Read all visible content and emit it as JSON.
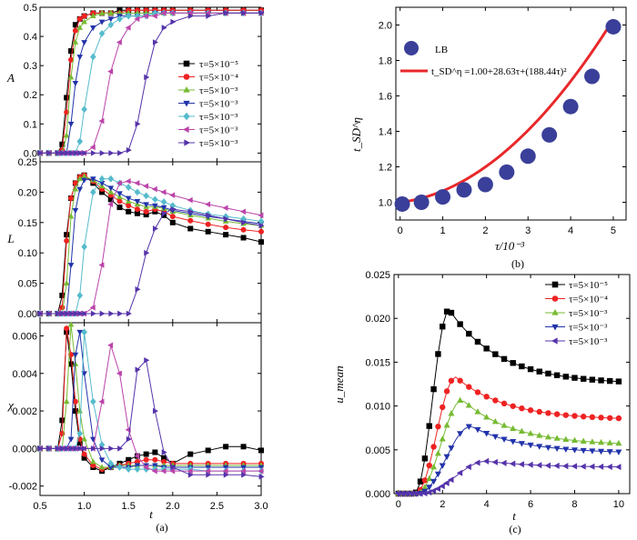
{
  "palette": {
    "black": "#000000",
    "red": "#ee2222",
    "green": "#77bb33",
    "blue": "#2233aa",
    "cyan": "#55bbcc",
    "magenta": "#bb44aa",
    "purple": "#5533aa",
    "fitRed": "#e8282b",
    "lbBlue": "#3a3f99"
  },
  "panel_a": {
    "caption": "(a)",
    "xlabel": "t",
    "legend": [
      "τ=5×10⁻⁵",
      "τ=5×10⁻⁴",
      "τ=5×10⁻³",
      "τ=5×10⁻³",
      "τ=5×10⁻³",
      "τ=5×10⁻³",
      "τ=5×10⁻³"
    ],
    "x": [
      0.5,
      0.6,
      0.7,
      0.75,
      0.8,
      0.85,
      0.9,
      0.95,
      1.0,
      1.1,
      1.2,
      1.3,
      1.4,
      1.5,
      1.6,
      1.7,
      1.8,
      1.9,
      2.0,
      2.2,
      2.4,
      2.6,
      2.8,
      3.0
    ],
    "offsets": [
      0.7,
      0.72,
      0.77,
      0.85,
      0.95,
      1.15,
      1.55
    ],
    "xticks": [
      "0.5",
      "1.0",
      "1.5",
      "2.0",
      "2.5",
      "3.0"
    ]
  },
  "chart_data": [
    {
      "type": "line",
      "ylabel": "A",
      "xlim": [
        0.5,
        3.0
      ],
      "ylim": [
        -0.03,
        0.5
      ],
      "yticks": [
        "0.0",
        "0.1",
        "0.2",
        "0.3",
        "0.4",
        "0.5"
      ],
      "series": [
        {
          "name": "τ=5×10⁻⁵",
          "values": [
            0,
            0,
            0.0,
            0.03,
            0.19,
            0.35,
            0.44,
            0.46,
            0.47,
            0.48,
            0.48,
            0.48,
            0.49,
            0.49,
            0.49,
            0.49,
            0.49,
            0.49,
            0.49,
            0.49,
            0.49,
            0.49,
            0.49,
            0.49
          ]
        },
        {
          "name": "τ=5×10⁻⁴",
          "values": [
            0,
            0,
            0.0,
            0.01,
            0.14,
            0.32,
            0.42,
            0.46,
            0.47,
            0.48,
            0.48,
            0.48,
            0.48,
            0.49,
            0.49,
            0.49,
            0.49,
            0.49,
            0.49,
            0.49,
            0.49,
            0.49,
            0.49,
            0.49
          ]
        },
        {
          "name": "τ=5×10⁻³",
          "values": [
            0,
            0,
            0.0,
            0.0,
            0.06,
            0.26,
            0.38,
            0.43,
            0.45,
            0.47,
            0.48,
            0.48,
            0.48,
            0.48,
            0.48,
            0.48,
            0.48,
            0.48,
            0.48,
            0.48,
            0.48,
            0.48,
            0.48,
            0.48
          ]
        },
        {
          "name": "τ=5×10⁻³",
          "values": [
            0,
            0,
            0.0,
            0.0,
            0.0,
            0.1,
            0.24,
            0.33,
            0.38,
            0.43,
            0.45,
            0.46,
            0.47,
            0.47,
            0.47,
            0.47,
            0.48,
            0.48,
            0.48,
            0.48,
            0.48,
            0.48,
            0.48,
            0.48
          ]
        },
        {
          "name": "τ=5×10⁻³",
          "values": [
            0,
            0,
            0.0,
            0.0,
            0.0,
            0.0,
            0.0,
            0.04,
            0.15,
            0.33,
            0.41,
            0.44,
            0.46,
            0.47,
            0.47,
            0.47,
            0.48,
            0.48,
            0.48,
            0.48,
            0.48,
            0.48,
            0.48,
            0.48
          ]
        },
        {
          "name": "τ=5×10⁻³",
          "values": [
            0,
            0,
            0.0,
            0.0,
            0.0,
            0.0,
            0.0,
            0.0,
            0.0,
            0.02,
            0.11,
            0.28,
            0.38,
            0.43,
            0.46,
            0.47,
            0.47,
            0.48,
            0.48,
            0.48,
            0.48,
            0.48,
            0.48,
            0.48
          ]
        },
        {
          "name": "τ=5×10⁻³",
          "values": [
            0,
            0,
            0.0,
            0.0,
            0.0,
            0.0,
            0.0,
            0.0,
            0.0,
            0.0,
            0.0,
            0.0,
            0.0,
            0.01,
            0.1,
            0.26,
            0.38,
            0.43,
            0.45,
            0.47,
            0.47,
            0.48,
            0.48,
            0.48
          ]
        }
      ]
    },
    {
      "type": "line",
      "ylabel": "L",
      "xlim": [
        0.5,
        3.0
      ],
      "ylim": [
        -0.015,
        0.25
      ],
      "yticks": [
        "0.00",
        "0.05",
        "0.10",
        "0.15",
        "0.20",
        "0.25"
      ],
      "series": [
        {
          "name": "τ=5×10⁻⁵",
          "values": [
            0,
            0,
            0.0,
            0.03,
            0.13,
            0.19,
            0.215,
            0.225,
            0.228,
            0.215,
            0.2,
            0.188,
            0.175,
            0.168,
            0.165,
            0.163,
            0.168,
            0.162,
            0.15,
            0.14,
            0.135,
            0.13,
            0.125,
            0.118
          ]
        },
        {
          "name": "τ=5×10⁻⁴",
          "values": [
            0,
            0,
            0.0,
            0.01,
            0.12,
            0.19,
            0.215,
            0.225,
            0.228,
            0.218,
            0.205,
            0.195,
            0.185,
            0.178,
            0.172,
            0.168,
            0.172,
            0.168,
            0.16,
            0.153,
            0.147,
            0.142,
            0.138,
            0.135
          ]
        },
        {
          "name": "τ=5×10⁻³",
          "values": [
            0,
            0,
            0.0,
            0.0,
            0.05,
            0.16,
            0.205,
            0.222,
            0.226,
            0.22,
            0.21,
            0.2,
            0.192,
            0.185,
            0.18,
            0.176,
            0.176,
            0.173,
            0.168,
            0.162,
            0.157,
            0.152,
            0.148,
            0.145
          ]
        },
        {
          "name": "τ=5×10⁻³",
          "values": [
            0,
            0,
            0.0,
            0.0,
            0.0,
            0.08,
            0.17,
            0.205,
            0.22,
            0.222,
            0.215,
            0.207,
            0.198,
            0.19,
            0.185,
            0.18,
            0.178,
            0.175,
            0.17,
            0.165,
            0.16,
            0.156,
            0.152,
            0.148
          ]
        },
        {
          "name": "τ=5×10⁻³",
          "values": [
            0,
            0,
            0.0,
            0.0,
            0.0,
            0.0,
            0.0,
            0.03,
            0.11,
            0.2,
            0.222,
            0.222,
            0.215,
            0.208,
            0.2,
            0.194,
            0.188,
            0.184,
            0.178,
            0.17,
            0.164,
            0.16,
            0.156,
            0.152
          ]
        },
        {
          "name": "τ=5×10⁻³",
          "values": [
            0,
            0,
            0.0,
            0.0,
            0.0,
            0.0,
            0.0,
            0.0,
            0.0,
            0.01,
            0.08,
            0.18,
            0.215,
            0.218,
            0.215,
            0.21,
            0.205,
            0.2,
            0.195,
            0.187,
            0.18,
            0.174,
            0.168,
            0.162
          ]
        },
        {
          "name": "τ=5×10⁻³",
          "values": [
            0,
            0,
            0.0,
            0.0,
            0.0,
            0.0,
            0.0,
            0.0,
            0.0,
            0.0,
            0.0,
            0.0,
            0.0,
            0.0,
            0.04,
            0.1,
            0.14,
            0.165,
            0.172,
            0.168,
            0.162,
            0.156,
            0.15,
            0.145
          ]
        }
      ]
    },
    {
      "type": "line",
      "ylabel": "χ",
      "xlim": [
        0.5,
        3.0
      ],
      "ylim": [
        -0.0025,
        0.0067
      ],
      "yticks": [
        "-0.002",
        "0.000",
        "0.002",
        "0.004",
        "0.006"
      ],
      "series": [
        {
          "name": "τ=5×10⁻⁵",
          "values": [
            0,
            0,
            0,
            0.0015,
            0.0062,
            0.0045,
            0.002,
            0.0003,
            -0.0005,
            -0.001,
            -0.0012,
            -0.001,
            -0.0008,
            -0.0006,
            -0.0004,
            -0.0003,
            -0.0002,
            -0.0005,
            -0.0008,
            -0.0003,
            -0.0001,
            0.0001,
            0.0001,
            -0.0001
          ]
        },
        {
          "name": "τ=5×10⁻⁴",
          "values": [
            0,
            0,
            0,
            0.0008,
            0.0064,
            0.005,
            0.0025,
            0.0005,
            -0.0003,
            -0.0009,
            -0.0011,
            -0.001,
            -0.0009,
            -0.0008,
            -0.0007,
            -0.0006,
            -0.0006,
            -0.0007,
            -0.0008,
            -0.0008,
            -0.0008,
            -0.0008,
            -0.0008,
            -0.0008
          ]
        },
        {
          "name": "τ=5×10⁻³",
          "values": [
            0,
            0,
            0,
            0.0,
            0.0025,
            0.0066,
            0.0045,
            0.002,
            0.0005,
            -0.0007,
            -0.001,
            -0.001,
            -0.0009,
            -0.0009,
            -0.0009,
            -0.0009,
            -0.0009,
            -0.0009,
            -0.0009,
            -0.0009,
            -0.0009,
            -0.0009,
            -0.0009,
            -0.0009
          ]
        },
        {
          "name": "τ=5×10⁻³",
          "values": [
            0,
            0,
            0,
            0.0,
            0.0,
            0.0005,
            0.005,
            0.0062,
            0.004,
            0.0005,
            -0.0006,
            -0.001,
            -0.001,
            -0.001,
            -0.0009,
            -0.0009,
            -0.0009,
            -0.001,
            -0.001,
            -0.001,
            -0.001,
            -0.001,
            -0.001,
            -0.001
          ]
        },
        {
          "name": "τ=5×10⁻³",
          "values": [
            0,
            0,
            0,
            0.0,
            0.0,
            0.0,
            0.0,
            0.0008,
            0.0062,
            0.0025,
            0.0002,
            -0.0008,
            -0.001,
            -0.0011,
            -0.0011,
            -0.0011,
            -0.0011,
            -0.0011,
            -0.0011,
            -0.0011,
            -0.0012,
            -0.0012,
            -0.0012,
            -0.0012
          ]
        },
        {
          "name": "τ=5×10⁻³",
          "values": [
            0,
            0,
            0,
            0.0,
            0.0,
            0.0,
            0.0,
            0.0,
            0.0,
            0.0,
            0.0025,
            0.0055,
            0.004,
            0.001,
            -0.0004,
            -0.001,
            -0.0012,
            -0.0012,
            -0.0012,
            -0.0012,
            -0.0012,
            -0.0012,
            -0.0012,
            -0.0012
          ]
        },
        {
          "name": "τ=5×10⁻³",
          "values": [
            0,
            0,
            0,
            0.0,
            0.0,
            0.0,
            0.0,
            0.0,
            0.0,
            0.0,
            0.0,
            0.0,
            0.0,
            0.0005,
            0.0042,
            0.0047,
            0.002,
            -0.0002,
            -0.001,
            -0.0014,
            -0.0014,
            -0.0014,
            -0.0014,
            -0.0015
          ]
        }
      ]
    },
    {
      "type": "scatter",
      "caption": "(b)",
      "xlabel": "τ/10⁻³",
      "ylabel": "t_SD^η",
      "xlim": [
        -0.1,
        5.3
      ],
      "ylim": [
        0.9,
        2.1
      ],
      "xticks": [
        "0",
        "1",
        "2",
        "3",
        "4",
        "5"
      ],
      "yticks": [
        "1.0",
        "1.2",
        "1.4",
        "1.6",
        "1.8",
        "2.0"
      ],
      "legend": [
        "LB",
        "t_SD^η =1.00+28.63τ+(188.44τ)²"
      ],
      "points": {
        "x": [
          0.05,
          0.5,
          1.0,
          1.5,
          2.0,
          2.5,
          3.0,
          3.5,
          4.0,
          4.5,
          5.0
        ],
        "y": [
          0.99,
          1.0,
          1.03,
          1.07,
          1.1,
          1.17,
          1.26,
          1.38,
          1.54,
          1.71,
          1.99
        ]
      },
      "fit": {
        "a": 1.0,
        "b": 0.02863,
        "c": 0.18844
      }
    },
    {
      "type": "line",
      "caption": "(c)",
      "xlabel": "t",
      "ylabel": "u_mean",
      "xlim": [
        -0.2,
        10.5
      ],
      "ylim": [
        0,
        0.025
      ],
      "xticks": [
        "0",
        "2",
        "4",
        "6",
        "8",
        "10"
      ],
      "yticks": [
        "0.000",
        "0.005",
        "0.010",
        "0.015",
        "0.020",
        "0.025"
      ],
      "legend": [
        "τ=5×10⁻⁵",
        "τ=5×10⁻⁴",
        "τ=5×10⁻³",
        "τ=5×10⁻³",
        "τ=5×10⁻³"
      ],
      "series": [
        {
          "name": "τ=5×10⁻⁵",
          "peak": 0.021,
          "tp": 2.3,
          "final": 0.0125,
          "onset": 0.7
        },
        {
          "name": "τ=5×10⁻⁴",
          "peak": 0.0133,
          "tp": 2.6,
          "final": 0.0084,
          "onset": 0.75
        },
        {
          "name": "τ=5×10⁻³",
          "peak": 0.0107,
          "tp": 2.9,
          "final": 0.0055,
          "onset": 0.8
        },
        {
          "name": "τ=5×10⁻³",
          "peak": 0.0077,
          "tp": 3.3,
          "final": 0.0046,
          "onset": 0.85
        },
        {
          "name": "τ=5×10⁻³",
          "peak": 0.0037,
          "tp": 4.0,
          "final": 0.003,
          "onset": 0.95
        }
      ]
    }
  ]
}
